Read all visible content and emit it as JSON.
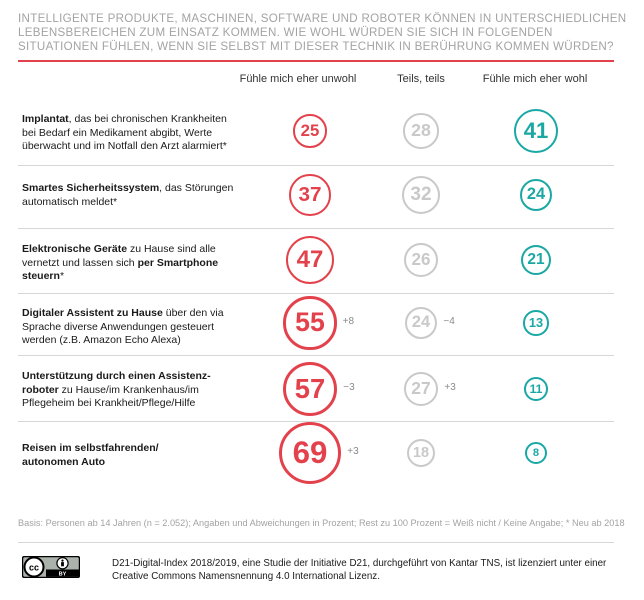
{
  "title": "INTELLIGENTE PRODUKTE, MASCHINEN, SOFTWARE UND ROBOTER KÖNNEN IN UNTERSCHIEDLICHEN LEBENSBEREICHEN ZUM EINSATZ KOMMEN. WIE WOHL WÜRDEN SIE SICH IN FOLGENDEN SITUATIONEN FÜHLEN, WENN SIE SELBST MIT DIESER TECHNIK IN BERÜHRUNG KOMMEN WÜRDEN?",
  "colors": {
    "red": "#e3424c",
    "grey": "#c9c9c9",
    "teal": "#1aa8a4",
    "title": "#a3a3a3"
  },
  "columns": [
    "Fühle mich eher unwohl",
    "Teils, teils",
    "Fühle mich eher wohl"
  ],
  "rows": [
    {
      "bold": "Implantat",
      "text": ", das bei chronischen Krankheiten bei Bedarf ein Medikament abgibt, Werte überwacht und im Notfall den Arzt alarmiert*"
    },
    {
      "bold": "Smartes Sicherheitssystem",
      "text": ", das Störungen automatisch meldet*"
    },
    {
      "bold": "Elektronische Geräte",
      "text": " zu Hause sind alle vernetzt und lassen sich ",
      "bold2": "per Smartphone steuern",
      "text2": "*"
    },
    {
      "bold": "Digitaler Assistent zu Hause",
      "text": " über den via Sprache diverse Anwendungen gesteuert werden (z.B. Amazon Echo Alexa)"
    },
    {
      "bold": "Unterstützung durch einen Assistenz-roboter",
      "text": " zu Hause/im Krankenhaus/im Pflegeheim bei Krankheit/Pflege/Hilfe"
    },
    {
      "bold": "Reisen im selbstfahrenden/ autonomen Auto",
      "text": ""
    }
  ],
  "chart_data": {
    "type": "table",
    "title": "INTELLIGENTE PRODUKTE, MASCHINEN, SOFTWARE UND ROBOTER KÖNNEN IN UNTERSCHIEDLICHEN LEBENSBEREICHEN ZUM EINSATZ KOMMEN. WIE WOHL WÜRDEN SIE SICH IN FOLGENDEN SITUATIONEN FÜHLEN, WENN SIE SELBST MIT DIESER TECHNIK IN BERÜHRUNG KOMMEN WÜRDEN?",
    "categories": [
      "Implantat",
      "Smartes Sicherheitssystem",
      "Elektronische Geräte",
      "Digitaler Assistent zu Hause",
      "Unterstützung durch einen Assistenzroboter",
      "Reisen im selbstfahrenden/autonomen Auto"
    ],
    "series": [
      {
        "name": "Fühle mich eher unwohl",
        "values": [
          25,
          37,
          47,
          55,
          57,
          69
        ],
        "deltas": [
          "",
          "",
          "",
          "+8",
          "−3",
          "+3"
        ]
      },
      {
        "name": "Teils, teils",
        "values": [
          28,
          32,
          26,
          24,
          27,
          18
        ],
        "deltas": [
          "",
          "",
          "",
          "−4",
          "+3",
          ""
        ]
      },
      {
        "name": "Fühle mich eher wohl",
        "values": [
          41,
          24,
          21,
          13,
          11,
          8
        ],
        "deltas": [
          "",
          "",
          "",
          "",
          "",
          ""
        ]
      }
    ]
  },
  "basis": "Basis: Personen ab 14 Jahren (n = 2.052); Angaben und Abweichungen in Prozent; Rest zu 100 Prozent = Weiß nicht / Keine Angabe; * Neu ab 2018",
  "credit": "D21-Digital-Index 2018/2019, eine Studie der Initiative D21, durchgeführt von Kantar TNS, ist lizenziert unter einer Creative Commons Namensnennung 4.0 International Lizenz.",
  "license": {
    "icon": "cc-by-icon",
    "cc": "cc",
    "by": "BY"
  }
}
